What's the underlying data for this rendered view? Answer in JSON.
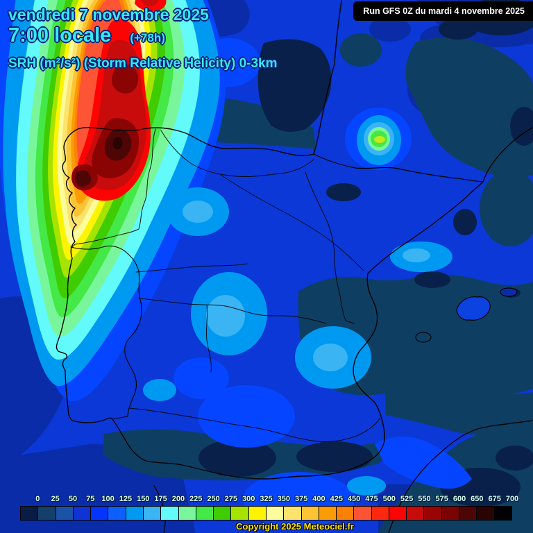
{
  "header": {
    "date": "vendredi 7 novembre 2025",
    "time": "7:00 locale",
    "forecast_offset": "(+78h)",
    "parameter": "SRH (m²/s²) (Storm Relative Helicity) 0-3km"
  },
  "run_info": "Run GFS 0Z du mardi 4 novembre 2025",
  "legend": {
    "unit": "m²/s²",
    "values": [
      "0",
      "25",
      "50",
      "75",
      "100",
      "125",
      "150",
      "175",
      "200",
      "225",
      "250",
      "275",
      "300",
      "325",
      "350",
      "375",
      "400",
      "425",
      "450",
      "475",
      "500",
      "525",
      "550",
      "575",
      "600",
      "650",
      "675",
      "700"
    ],
    "colors": [
      "#081C45",
      "#14406B",
      "#1A52A8",
      "#1233D4",
      "#0435FF",
      "#0E5FFF",
      "#0099F2",
      "#3AB4F2",
      "#62FAFA",
      "#79F69C",
      "#44E847",
      "#3FCC00",
      "#A6E400",
      "#FCF400",
      "#FCFC9C",
      "#FCE46C",
      "#FCC434",
      "#FC9C04",
      "#FC8004",
      "#FC5434",
      "#FC2810",
      "#FC0404",
      "#C80C0C",
      "#9A0404",
      "#7A0404",
      "#4E0505",
      "#2A0303",
      "#020202"
    ]
  },
  "footer": {
    "copyright": "Copyright 2025 Meteociel.fr"
  },
  "colors": {
    "header_text": "#38E8F0",
    "legend_label_text": "#D8FFEF",
    "copyright_text": "#FFE400",
    "run_box_background": "#000000",
    "run_box_text": "#FFFFFF"
  }
}
